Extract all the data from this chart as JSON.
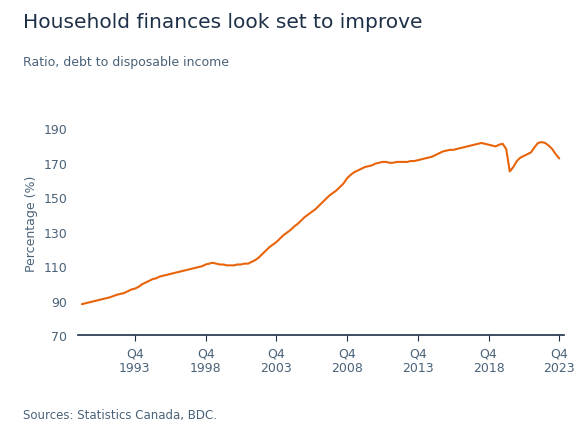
{
  "title": "Household finances look set to improve",
  "subtitle": "Ratio, debt to disposable income",
  "ylabel": "Percentage (%)",
  "source": "Sources: Statistics Canada, BDC.",
  "line_color": "#E8640A",
  "background_color": "#ffffff",
  "title_color": "#1e3048",
  "subtitle_color": "#4a6278",
  "axis_color": "#4a6278",
  "tick_label_color": "#4a6278",
  "source_color": "#4a6278",
  "spine_color": "#1e3048",
  "ylim": [
    70,
    200
  ],
  "yticks": [
    70,
    90,
    110,
    130,
    150,
    170,
    190
  ],
  "x_tick_years": [
    1993,
    1998,
    2003,
    2008,
    2013,
    2018,
    2023
  ],
  "data": {
    "1990Q1": 88.0,
    "1990Q2": 88.5,
    "1990Q3": 89.0,
    "1990Q4": 89.5,
    "1991Q1": 90.0,
    "1991Q2": 90.5,
    "1991Q3": 91.0,
    "1991Q4": 91.5,
    "1992Q1": 92.0,
    "1992Q2": 92.8,
    "1992Q3": 93.5,
    "1992Q4": 94.0,
    "1993Q1": 94.5,
    "1993Q2": 95.5,
    "1993Q3": 96.5,
    "1993Q4": 97.0,
    "1994Q1": 98.0,
    "1994Q2": 99.5,
    "1994Q3": 100.5,
    "1994Q4": 101.5,
    "1995Q1": 102.5,
    "1995Q2": 103.0,
    "1995Q3": 104.0,
    "1995Q4": 104.5,
    "1996Q1": 105.0,
    "1996Q2": 105.5,
    "1996Q3": 106.0,
    "1996Q4": 106.5,
    "1997Q1": 107.0,
    "1997Q2": 107.5,
    "1997Q3": 108.0,
    "1997Q4": 108.5,
    "1998Q1": 109.0,
    "1998Q2": 109.5,
    "1998Q3": 110.0,
    "1998Q4": 111.0,
    "1999Q1": 111.5,
    "1999Q2": 112.0,
    "1999Q3": 111.5,
    "1999Q4": 111.0,
    "2000Q1": 111.0,
    "2000Q2": 110.5,
    "2000Q3": 110.5,
    "2000Q4": 110.5,
    "2001Q1": 111.0,
    "2001Q2": 111.0,
    "2001Q3": 111.5,
    "2001Q4": 111.5,
    "2002Q1": 112.5,
    "2002Q2": 113.5,
    "2002Q3": 115.0,
    "2002Q4": 117.0,
    "2003Q1": 119.0,
    "2003Q2": 121.0,
    "2003Q3": 122.5,
    "2003Q4": 124.0,
    "2004Q1": 126.0,
    "2004Q2": 128.0,
    "2004Q3": 129.5,
    "2004Q4": 131.0,
    "2005Q1": 133.0,
    "2005Q2": 134.5,
    "2005Q3": 136.5,
    "2005Q4": 138.5,
    "2006Q1": 140.0,
    "2006Q2": 141.5,
    "2006Q3": 143.0,
    "2006Q4": 145.0,
    "2007Q1": 147.0,
    "2007Q2": 149.0,
    "2007Q3": 151.0,
    "2007Q4": 152.5,
    "2008Q1": 154.0,
    "2008Q2": 156.0,
    "2008Q3": 158.0,
    "2008Q4": 161.0,
    "2009Q1": 163.0,
    "2009Q2": 164.5,
    "2009Q3": 165.5,
    "2009Q4": 166.5,
    "2010Q1": 167.5,
    "2010Q2": 168.0,
    "2010Q3": 168.5,
    "2010Q4": 169.5,
    "2011Q1": 170.0,
    "2011Q2": 170.5,
    "2011Q3": 170.5,
    "2011Q4": 170.0,
    "2012Q1": 170.0,
    "2012Q2": 170.5,
    "2012Q3": 170.5,
    "2012Q4": 170.5,
    "2013Q1": 170.5,
    "2013Q2": 171.0,
    "2013Q3": 171.0,
    "2013Q4": 171.5,
    "2014Q1": 172.0,
    "2014Q2": 172.5,
    "2014Q3": 173.0,
    "2014Q4": 173.5,
    "2015Q1": 174.5,
    "2015Q2": 175.5,
    "2015Q3": 176.5,
    "2015Q4": 177.0,
    "2016Q1": 177.5,
    "2016Q2": 177.5,
    "2016Q3": 178.0,
    "2016Q4": 178.5,
    "2017Q1": 179.0,
    "2017Q2": 179.5,
    "2017Q3": 180.0,
    "2017Q4": 180.5,
    "2018Q1": 181.0,
    "2018Q2": 181.5,
    "2018Q3": 181.0,
    "2018Q4": 180.5,
    "2019Q1": 180.0,
    "2019Q2": 179.5,
    "2019Q3": 180.5,
    "2019Q4": 181.0,
    "2020Q1": 178.0,
    "2020Q2": 165.0,
    "2020Q3": 167.5,
    "2020Q4": 171.0,
    "2021Q1": 173.0,
    "2021Q2": 174.0,
    "2021Q3": 175.0,
    "2021Q4": 176.0,
    "2022Q1": 179.0,
    "2022Q2": 181.5,
    "2022Q3": 182.0,
    "2022Q4": 181.5,
    "2023Q1": 180.0,
    "2023Q2": 178.0,
    "2023Q3": 175.0,
    "2023Q4": 172.5
  }
}
